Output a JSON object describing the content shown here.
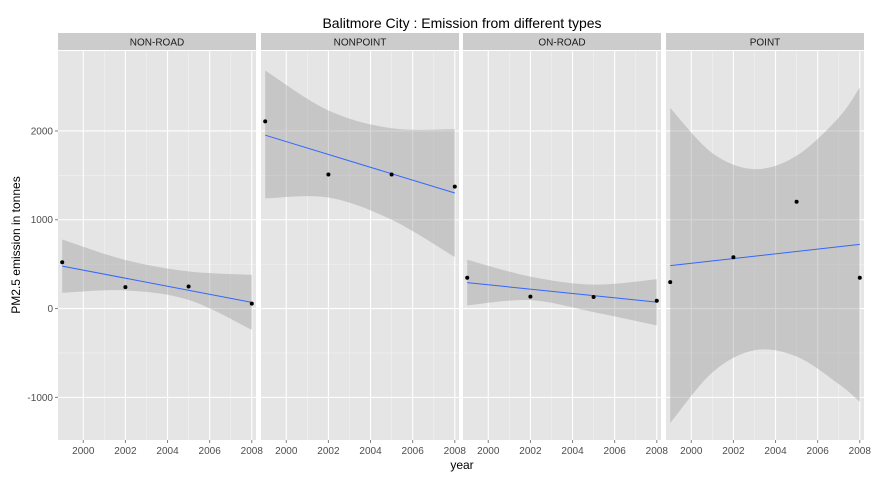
{
  "chart_data": {
    "type": "scatter",
    "title": "Balitmore City : Emission from different types",
    "xlabel": "year",
    "ylabel": "PM2.5 emission in tonnes",
    "x_ticks": [
      2000,
      2002,
      2004,
      2006,
      2008
    ],
    "x_tick_labels": [
      "2000",
      "2002",
      "2004",
      "2006",
      "2008"
    ],
    "y_ticks": [
      -1000,
      0,
      1000,
      2000
    ],
    "y_tick_labels": [
      "-1000",
      "0",
      "1000",
      "2000"
    ],
    "xlim": [
      1998.8,
      2008.2
    ],
    "ylim": [
      -1480,
      2900
    ],
    "grid": true,
    "trend": "linear fit with confidence band",
    "colors": {
      "panel_bg": "#e5e5e5",
      "strip_bg": "#cccccc",
      "grid_major": "#ffffff",
      "grid_minor": "#f2f2f2",
      "points": "#000000",
      "fit_line": "#3366ff",
      "band": "#999999"
    },
    "panels": [
      {
        "name": "NON-ROAD",
        "points": [
          [
            1999,
            522
          ],
          [
            2002,
            241
          ],
          [
            2005,
            249
          ],
          [
            2008,
            55
          ]
        ],
        "fit": [
          [
            1999,
            478
          ],
          [
            2008,
            70
          ]
        ],
        "band_upper": [
          [
            1999,
            778
          ],
          [
            2002,
            547
          ],
          [
            2005,
            418
          ],
          [
            2008,
            379
          ]
        ],
        "band_lower": [
          [
            1999,
            178
          ],
          [
            2002,
            205
          ],
          [
            2005,
            98
          ],
          [
            2008,
            -239
          ]
        ]
      },
      {
        "name": "NONPOINT",
        "points": [
          [
            1999,
            2108
          ],
          [
            2002,
            1510
          ],
          [
            2005,
            1509
          ],
          [
            2008,
            1373
          ]
        ],
        "fit": [
          [
            1999,
            1952
          ],
          [
            2008,
            1301
          ]
        ],
        "band_upper": [
          [
            1999,
            2680
          ],
          [
            2002,
            2230
          ],
          [
            2005,
            2030
          ],
          [
            2008,
            2020
          ]
        ],
        "band_lower": [
          [
            1999,
            1240
          ],
          [
            2002,
            1250
          ],
          [
            2005,
            1000
          ],
          [
            2008,
            580
          ]
        ]
      },
      {
        "name": "ON-ROAD",
        "points": [
          [
            1999,
            347
          ],
          [
            2002,
            134
          ],
          [
            2005,
            130
          ],
          [
            2008,
            88
          ]
        ],
        "fit": [
          [
            1999,
            292
          ],
          [
            2008,
            72
          ]
        ],
        "band_upper": [
          [
            1999,
            550
          ],
          [
            2002,
            360
          ],
          [
            2005,
            270
          ],
          [
            2008,
            330
          ]
        ],
        "band_lower": [
          [
            1999,
            35
          ],
          [
            2002,
            95
          ],
          [
            2005,
            -40
          ],
          [
            2008,
            -190
          ]
        ]
      },
      {
        "name": "POINT",
        "points": [
          [
            1999,
            297
          ],
          [
            2002,
            577
          ],
          [
            2005,
            1202
          ],
          [
            2008,
            347
          ]
        ],
        "fit": [
          [
            1999,
            484
          ],
          [
            2008,
            722
          ]
        ],
        "band_upper": [
          [
            1999,
            2260
          ],
          [
            2001,
            1750
          ],
          [
            2003,
            1570
          ],
          [
            2005,
            1720
          ],
          [
            2007,
            2150
          ],
          [
            2008,
            2490
          ]
        ],
        "band_lower": [
          [
            1999,
            -1290
          ],
          [
            2001,
            -720
          ],
          [
            2003,
            -470
          ],
          [
            2005,
            -540
          ],
          [
            2007,
            -850
          ],
          [
            2008,
            -1050
          ]
        ]
      }
    ]
  }
}
